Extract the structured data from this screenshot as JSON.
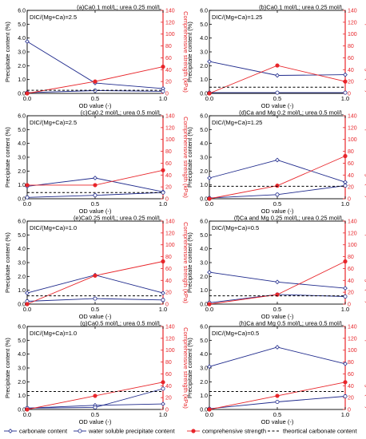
{
  "colors": {
    "carbonate": "#1f2a8c",
    "water_soluble": "#1f2a8c",
    "strength": "#e8252a",
    "theoretical": "#000000",
    "green_marker": "#2e9e3e",
    "axis": "#000000",
    "right_axis": "#e8252a"
  },
  "legend": {
    "carbonate": "carbonate content",
    "water_soluble": "water soluble precipitate content",
    "strength": "comprehensive strength",
    "theoretical": "theortical carbonate content"
  },
  "axes": {
    "ylabel_left": "Precipitate content (%)",
    "ylabel_right": "Comprehensive strength (kPa)",
    "xlabel": "OD value (-)",
    "ylim_left": [
      0,
      6
    ],
    "ylim_right": [
      0,
      140
    ],
    "xlim": [
      0,
      1
    ],
    "x_ticks": [
      "0.0",
      "0.5",
      "1.0"
    ],
    "y_ticks_left": [
      "0.0",
      "1.0",
      "2.0",
      "3.0",
      "4.0",
      "5.0",
      "6.0"
    ],
    "y_ticks_right": [
      "0",
      "20",
      "40",
      "60",
      "80",
      "100",
      "120",
      "140"
    ]
  },
  "chart_data": [
    {
      "type": "line",
      "title": "(a)Ca0.1 mol/L; urea 0.25 mol/L",
      "annotation": "DIC/(Mg+Ca)=2.5",
      "x": [
        0,
        0.5,
        1
      ],
      "series": [
        {
          "name": "carbonate content",
          "axis": "left",
          "values": [
            3.75,
            0.75,
            0.35
          ]
        },
        {
          "name": "water soluble precipitate content",
          "axis": "left",
          "values": [
            0.05,
            0.2,
            0.15
          ]
        },
        {
          "name": "comprehensive strength",
          "axis": "right",
          "values": [
            0,
            20,
            45
          ]
        },
        {
          "name": "theortical carbonate content",
          "axis": "left",
          "values": [
            0.22,
            0.22,
            0.22
          ]
        }
      ]
    },
    {
      "type": "line",
      "title": "(b)Ca0.1 mol/L; urea 0.25 mol/L",
      "annotation": "DIC/(Mg+Ca)=1.25",
      "x": [
        0,
        0.5,
        1
      ],
      "series": [
        {
          "name": "carbonate content",
          "axis": "left",
          "values": [
            2.3,
            1.3,
            1.35
          ]
        },
        {
          "name": "water soluble precipitate content",
          "axis": "left",
          "values": [
            0.05,
            0.05,
            0.05
          ]
        },
        {
          "name": "comprehensive strength",
          "axis": "right",
          "values": [
            0,
            47,
            20
          ]
        },
        {
          "name": "theortical carbonate content",
          "axis": "left",
          "values": [
            0.45,
            0.45,
            0.45
          ]
        }
      ]
    },
    {
      "type": "line",
      "title": "(c)Ca0.2 mol/L; urea 0.5 mol/L",
      "annotation": "DIC/(Mg+Ca)=2.5",
      "x": [
        0,
        0.5,
        1
      ],
      "series": [
        {
          "name": "carbonate content",
          "axis": "left",
          "values": [
            0.9,
            1.5,
            0.5
          ]
        },
        {
          "name": "water soluble precipitate content",
          "axis": "left",
          "values": [
            0.1,
            0.25,
            0.45
          ]
        },
        {
          "name": "comprehensive strength",
          "axis": "right",
          "values": [
            23,
            23,
            48
          ]
        },
        {
          "name": "theortical carbonate content",
          "axis": "left",
          "values": [
            0.45,
            0.45,
            0.45
          ]
        }
      ]
    },
    {
      "type": "line",
      "title": "(d)Ca and Mg 0.2 mol/L; urea 0.5 mol/L",
      "annotation": "DIC/(Mg+Ca)=1.25",
      "x": [
        0,
        0.5,
        1
      ],
      "series": [
        {
          "name": "carbonate content",
          "axis": "left",
          "values": [
            1.5,
            2.8,
            1.2
          ]
        },
        {
          "name": "water soluble precipitate content",
          "axis": "left",
          "values": [
            0.05,
            0.3,
            0.95
          ]
        },
        {
          "name": "comprehensive strength",
          "axis": "right",
          "values": [
            0,
            22,
            72
          ]
        },
        {
          "name": "theortical carbonate content",
          "axis": "left",
          "values": [
            0.9,
            0.9,
            0.9
          ]
        }
      ]
    },
    {
      "type": "line",
      "title": "(e)Ca0.25 mol/L; urea 0.25 mol/L",
      "annotation": "DIC/(Mg+Ca)=1.0",
      "x": [
        0,
        0.5,
        1
      ],
      "series": [
        {
          "name": "carbonate content",
          "axis": "left",
          "values": [
            0.8,
            2.1,
            0.8
          ]
        },
        {
          "name": "water soluble precipitate content",
          "axis": "left",
          "values": [
            0.2,
            0.4,
            0.3
          ]
        },
        {
          "name": "comprehensive strength",
          "axis": "right",
          "values": [
            0,
            48,
            72
          ]
        },
        {
          "name": "theortical carbonate content",
          "axis": "left",
          "values": [
            0.6,
            0.6,
            0.6
          ]
        }
      ]
    },
    {
      "type": "line",
      "title": "(f)Ca and Mg 0.25 mol/L; urea 0.25 mol/L",
      "annotation": "DIC/(Mg+Ca)=0.5",
      "x": [
        0,
        0.5,
        1
      ],
      "series": [
        {
          "name": "carbonate content",
          "axis": "left",
          "values": [
            2.3,
            1.6,
            1.15
          ]
        },
        {
          "name": "water soluble precipitate content",
          "axis": "left",
          "values": [
            0.1,
            0.7,
            0.55
          ]
        },
        {
          "name": "comprehensive strength",
          "axis": "right",
          "values": [
            0,
            16,
            72
          ]
        },
        {
          "name": "theortical carbonate content",
          "axis": "left",
          "values": [
            0.6,
            0.6,
            0.6
          ]
        }
      ]
    },
    {
      "type": "line",
      "title": "(g)Ca0.5 mol/L; urea 0.5 mol/L",
      "annotation": "DIC/(Mg+Ca)=1.0",
      "x": [
        0,
        0.5,
        1
      ],
      "series": [
        {
          "name": "carbonate content",
          "axis": "left",
          "values": [
            0.1,
            0.3,
            0.4
          ]
        },
        {
          "name": "water soluble precipitate content",
          "axis": "left",
          "values": [
            0.1,
            0.15,
            1.5
          ]
        },
        {
          "name": "comprehensive strength",
          "axis": "right",
          "values": [
            0,
            23,
            46
          ]
        },
        {
          "name": "theortical carbonate content",
          "axis": "left",
          "values": [
            1.3,
            1.3,
            1.3
          ]
        }
      ]
    },
    {
      "type": "line",
      "title": "(h)Ca and Mg 0.5 mol/L; urea 0.5 mol/L",
      "annotation": "DIC/(Mg+Ca)=0.5",
      "x": [
        0,
        0.5,
        1
      ],
      "series": [
        {
          "name": "carbonate content",
          "axis": "left",
          "values": [
            3.1,
            4.5,
            3.3
          ]
        },
        {
          "name": "water soluble precipitate content",
          "axis": "left",
          "values": [
            0.05,
            0.55,
            0.95
          ]
        },
        {
          "name": "comprehensive strength",
          "axis": "right",
          "values": [
            0,
            23,
            46
          ]
        },
        {
          "name": "theortical carbonate content",
          "axis": "left",
          "values": [
            1.3,
            1.3,
            1.3
          ]
        }
      ]
    }
  ]
}
